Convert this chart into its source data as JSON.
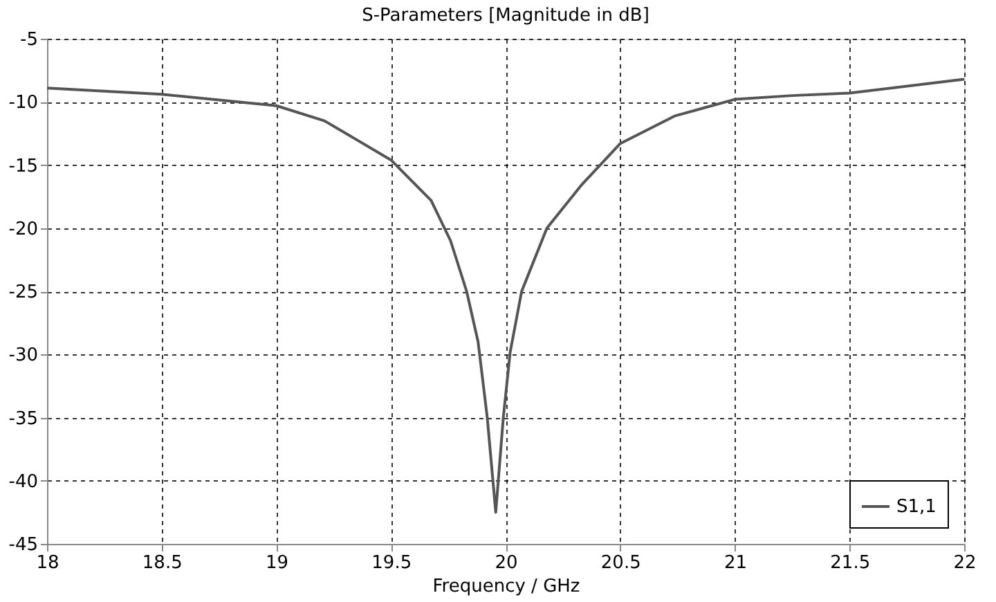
{
  "chart_data": {
    "type": "line",
    "title": "S-Parameters [Magnitude in dB]",
    "xlabel": "Frequency / GHz",
    "x": [
      18,
      18.5,
      19,
      19.21,
      19.5,
      19.675,
      19.76,
      19.83,
      19.88,
      19.92,
      19.957,
      19.99,
      20.02,
      20.07,
      20.18,
      20.33,
      20.5,
      20.74,
      21,
      21.25,
      21.5,
      22
    ],
    "series": [
      {
        "name": "S1,1",
        "color": "#555555",
        "values": [
          -8.9,
          -9.4,
          -10.3,
          -11.5,
          -14.6,
          -17.8,
          -21,
          -25,
          -29,
          -35,
          -42.5,
          -35,
          -29.8,
          -25,
          -20,
          -16.6,
          -13.3,
          -11.1,
          -9.8,
          -9.5,
          -9.3,
          -8.2
        ]
      }
    ],
    "xlim": [
      18,
      22
    ],
    "xticks": [
      18,
      18.5,
      19,
      19.5,
      20,
      20.5,
      21,
      21.5,
      22
    ],
    "ylim": [
      -45,
      -5
    ],
    "yticks": [
      -45,
      -40,
      -35,
      -30,
      -25,
      -20,
      -15,
      -10,
      -5
    ],
    "grid": true,
    "legend": "bottom right",
    "marker": "none",
    "line_style": "solid"
  }
}
